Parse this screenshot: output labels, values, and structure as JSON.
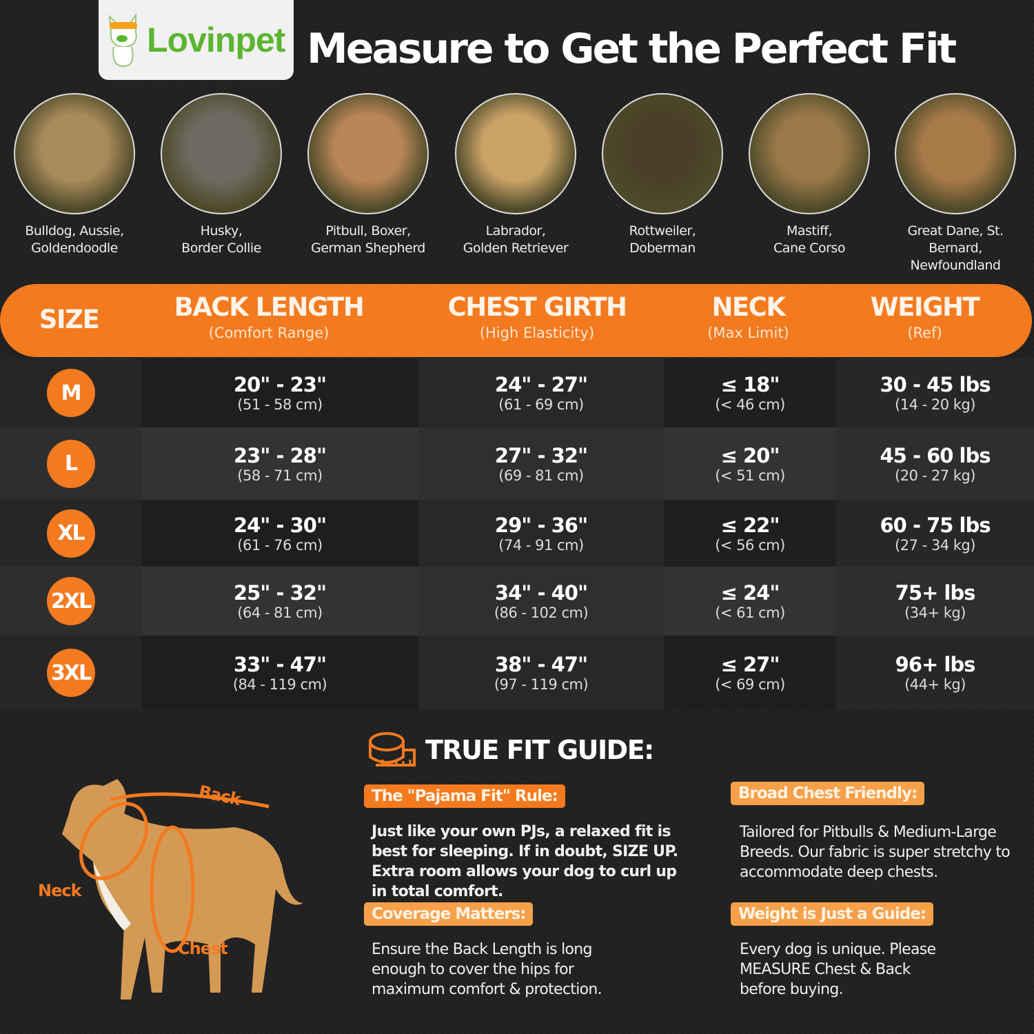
{
  "brand": {
    "name": "Lovinpet"
  },
  "title": "Measure to Get the Perfect Fit",
  "breeds": [
    {
      "line1": "Bulldog, Aussie,",
      "line2": "Goldendoodle",
      "color": "#a98a5a"
    },
    {
      "line1": "Husky,",
      "line2": "Border Collie",
      "color": "#6f6a60"
    },
    {
      "line1": "Pitbull, Boxer,",
      "line2": "German Shepherd",
      "color": "#b88656"
    },
    {
      "line1": "Labrador,",
      "line2": "Golden Retriever",
      "color": "#c9a266"
    },
    {
      "line1": "Rottweiler,",
      "line2": "Doberman",
      "color": "#4a4028"
    },
    {
      "line1": "Mastiff,",
      "line2": "Cane Corso",
      "color": "#9a7848"
    },
    {
      "line1": "Great Dane, St.",
      "line2": "Bernard, Newfoundland",
      "color": "#a87a48"
    }
  ],
  "table": {
    "headers": [
      {
        "title": "SIZE",
        "sub": ""
      },
      {
        "title": "BACK LENGTH",
        "sub": "(Comfort Range)"
      },
      {
        "title": "CHEST GIRTH",
        "sub": "(High Elasticity)"
      },
      {
        "title": "NECK",
        "sub": "(Max Limit)"
      },
      {
        "title": "WEIGHT",
        "sub": "(Ref)"
      }
    ],
    "rows": [
      {
        "size": "M",
        "back": "20\" - 23\"",
        "back_cm": "(51 - 58 cm)",
        "chest": "24\" - 27\"",
        "chest_cm": "(61 - 69 cm)",
        "neck": "≤ 18\"",
        "neck_cm": "(< 46 cm)",
        "weight": "30 - 45 lbs",
        "weight_kg": "(14 - 20 kg)"
      },
      {
        "size": "L",
        "back": "23\" - 28\"",
        "back_cm": "(58 - 71 cm)",
        "chest": "27\" - 32\"",
        "chest_cm": "(69 - 81 cm)",
        "neck": "≤ 20\"",
        "neck_cm": "(< 51 cm)",
        "weight": "45 - 60 lbs",
        "weight_kg": "(20 - 27 kg)"
      },
      {
        "size": "XL",
        "back": "24\" - 30\"",
        "back_cm": "(61 - 76 cm)",
        "chest": "29\" - 36\"",
        "chest_cm": "(74 - 91 cm)",
        "neck": "≤ 22\"",
        "neck_cm": "(< 56 cm)",
        "weight": "60 - 75 lbs",
        "weight_kg": "(27 - 34 kg)"
      },
      {
        "size": "2XL",
        "back": "25\" - 32\"",
        "back_cm": "(64 - 81 cm)",
        "chest": "34\" - 40\"",
        "chest_cm": "(86 - 102 cm)",
        "neck": "≤ 24\"",
        "neck_cm": "(< 61 cm)",
        "weight": "75+ lbs",
        "weight_kg": "(34+ kg)"
      },
      {
        "size": "3XL",
        "back": "33\" - 47\"",
        "back_cm": "(84 - 119 cm)",
        "chest": "38\" - 47\"",
        "chest_cm": "(97 - 119 cm)",
        "neck": "≤ 27\"",
        "neck_cm": "(< 69 cm)",
        "weight": "96+ lbs",
        "weight_kg": "(44+ kg)"
      }
    ]
  },
  "diagram": {
    "back": "Back",
    "neck": "Neck",
    "chest": "Chest"
  },
  "guide": {
    "title": "TRUE FIT GUIDE:",
    "items": [
      {
        "tag": "The \"Pajama Fit\" Rule:",
        "text": "Just like your own PJs, a relaxed fit is best for sleeping. If in doubt, SIZE UP. Extra room allows your dog to curl up in total comfort."
      },
      {
        "tag": "Broad Chest Friendly:",
        "text": "Tailored for Pitbulls & Medium-Large Breeds. Our fabric is super stretchy to accommodate deep chests."
      },
      {
        "tag": "Coverage Matters:",
        "text": "Ensure the Back Length is long enough to cover the hips for maximum comfort & protection."
      },
      {
        "tag": "Weight is Just a Guide:",
        "text": "Every dog is unique. Please MEASURE Chest & Back before buying."
      }
    ]
  },
  "colors": {
    "accent": "#f37a1f",
    "light_accent": "#f6a04a",
    "brand_green": "#5bb531"
  }
}
